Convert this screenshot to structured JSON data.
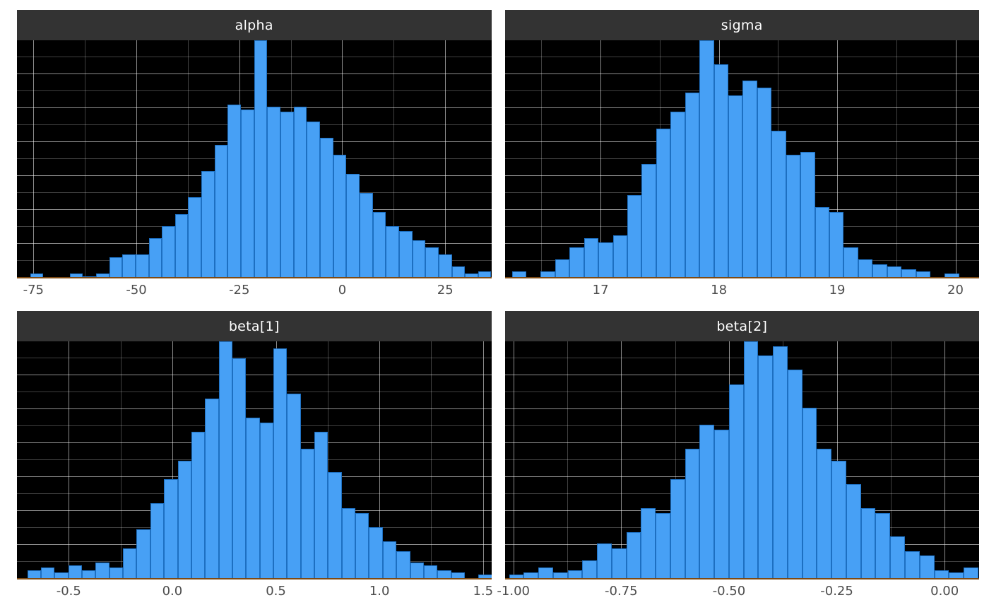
{
  "figure": {
    "layout": "2x2 histogram grid (MCMC posterior draws, dark theme)",
    "colors": {
      "plot_bg": "#000000",
      "strip_bg": "#333333",
      "strip_text": "#ffffff",
      "bar_fill": "#47a0f5",
      "bar_stroke": "#1d6fc1",
      "grid_major": "rgba(255,255,255,0.55)",
      "grid_minor": "rgba(255,255,255,0.25)",
      "axis_text_color": "#4d4d4d",
      "baseline_color": "#7d4a14",
      "page_bg": "#ffffff"
    }
  },
  "chart_data": [
    {
      "type": "bar",
      "subtype": "histogram",
      "title": "alpha",
      "xlabel": "",
      "ylabel": "",
      "ylim": [
        0,
        1
      ],
      "xlim": [
        -79,
        36.2
      ],
      "ticks": [
        -75,
        -50,
        -25,
        0,
        25
      ],
      "tick_labels": [
        "-75",
        "-50",
        "-25",
        "0",
        "25"
      ],
      "bin_start": -79,
      "bin_width": 3.2,
      "heights": [
        0.0,
        0.02,
        0.0,
        0.0,
        0.02,
        0.01,
        0.02,
        0.09,
        0.1,
        0.1,
        0.17,
        0.22,
        0.27,
        0.34,
        0.45,
        0.56,
        0.73,
        0.71,
        1.0,
        0.72,
        0.7,
        0.72,
        0.66,
        0.59,
        0.52,
        0.44,
        0.36,
        0.28,
        0.22,
        0.2,
        0.16,
        0.13,
        0.1,
        0.05,
        0.02,
        0.03
      ]
    },
    {
      "type": "bar",
      "subtype": "histogram",
      "title": "sigma",
      "xlabel": "",
      "ylabel": "",
      "ylim": [
        0,
        1
      ],
      "xlim": [
        16.19,
        20.2
      ],
      "ticks": [
        17,
        18,
        19,
        20
      ],
      "tick_labels": [
        "17",
        "18",
        "19",
        "20"
      ],
      "bin_start": 16.25,
      "bin_width": 0.122,
      "heights": [
        0.03,
        0.0,
        0.03,
        0.08,
        0.13,
        0.17,
        0.15,
        0.18,
        0.35,
        0.48,
        0.63,
        0.7,
        0.78,
        1.0,
        0.9,
        0.77,
        0.83,
        0.8,
        0.62,
        0.52,
        0.53,
        0.3,
        0.28,
        0.13,
        0.08,
        0.06,
        0.05,
        0.04,
        0.03,
        0.0,
        0.02
      ]
    },
    {
      "type": "bar",
      "subtype": "histogram",
      "title": "beta[1]",
      "xlabel": "",
      "ylabel": "",
      "ylim": [
        0,
        1
      ],
      "xlim": [
        -0.75,
        1.54
      ],
      "ticks": [
        -0.5,
        0.0,
        0.5,
        1.0,
        1.5
      ],
      "tick_labels": [
        "-0.5",
        "0.0",
        "0.5",
        "1.0",
        "1.5"
      ],
      "bin_start": -0.7,
      "bin_width": 0.066,
      "heights": [
        0.04,
        0.05,
        0.03,
        0.06,
        0.04,
        0.07,
        0.05,
        0.13,
        0.21,
        0.32,
        0.42,
        0.5,
        0.62,
        0.76,
        1.0,
        0.93,
        0.68,
        0.66,
        0.97,
        0.78,
        0.55,
        0.62,
        0.45,
        0.3,
        0.28,
        0.22,
        0.16,
        0.12,
        0.07,
        0.06,
        0.04,
        0.03,
        0.0,
        0.02
      ]
    },
    {
      "type": "bar",
      "subtype": "histogram",
      "title": "beta[2]",
      "xlabel": "",
      "ylabel": "",
      "ylim": [
        0,
        1
      ],
      "xlim": [
        -1.02,
        0.08
      ],
      "ticks": [
        -1.0,
        -0.75,
        -0.5,
        -0.25,
        0.0
      ],
      "tick_labels": [
        "-1.00",
        "-0.75",
        "-0.50",
        "-0.25",
        "0.00"
      ],
      "bin_start": -1.01,
      "bin_width": 0.034,
      "heights": [
        0.02,
        0.03,
        0.05,
        0.03,
        0.04,
        0.08,
        0.15,
        0.13,
        0.2,
        0.3,
        0.28,
        0.42,
        0.55,
        0.65,
        0.63,
        0.82,
        1.0,
        0.94,
        0.98,
        0.88,
        0.72,
        0.55,
        0.5,
        0.4,
        0.3,
        0.28,
        0.18,
        0.12,
        0.1,
        0.04,
        0.03,
        0.05
      ]
    }
  ]
}
